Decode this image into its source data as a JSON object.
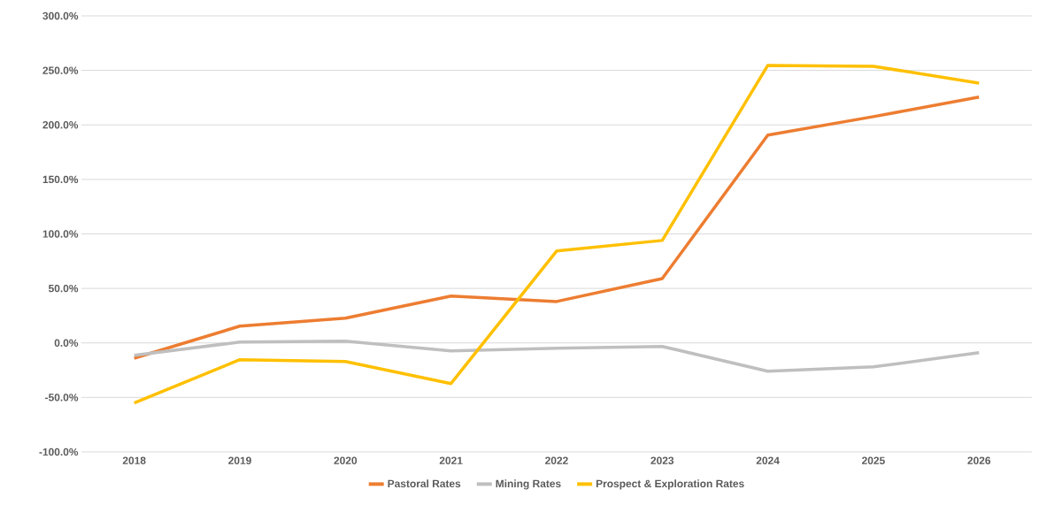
{
  "chart_data": {
    "type": "line",
    "categories": [
      "2018",
      "2019",
      "2020",
      "2021",
      "2022",
      "2023",
      "2024",
      "2025",
      "2026"
    ],
    "series": [
      {
        "name": "Pastoral Rates",
        "color": "#ed7d31",
        "values": [
          -14,
          15.4,
          22.7,
          43,
          38,
          59,
          190.6,
          207.6,
          225.5
        ]
      },
      {
        "name": "Mining Rates",
        "color": "#bfbfbf",
        "values": [
          -11.4,
          0.8,
          1.6,
          -7.3,
          -4.9,
          -3.2,
          -26,
          -22,
          -8.9
        ]
      },
      {
        "name": "Prospect & Exploration Rates",
        "color": "#ffc000",
        "values": [
          -55,
          -15.4,
          -17,
          -37.3,
          84.3,
          94,
          254.6,
          253.8,
          238.4
        ]
      }
    ],
    "ylim": [
      -100,
      300
    ],
    "yticks": [
      {
        "value": -100,
        "label": "-100.0%"
      },
      {
        "value": -50,
        "label": "-50.0%"
      },
      {
        "value": 0,
        "label": "0.0%"
      },
      {
        "value": 50,
        "label": "50.0%"
      },
      {
        "value": 100,
        "label": "100.0%"
      },
      {
        "value": 150,
        "label": "150.0%"
      },
      {
        "value": 200,
        "label": "200.0%"
      },
      {
        "value": 250,
        "label": "250.0%"
      },
      {
        "value": 300,
        "label": "300.0%"
      }
    ],
    "grid": "y",
    "legend": "bottom",
    "marker": "none",
    "line_style": "solid"
  }
}
